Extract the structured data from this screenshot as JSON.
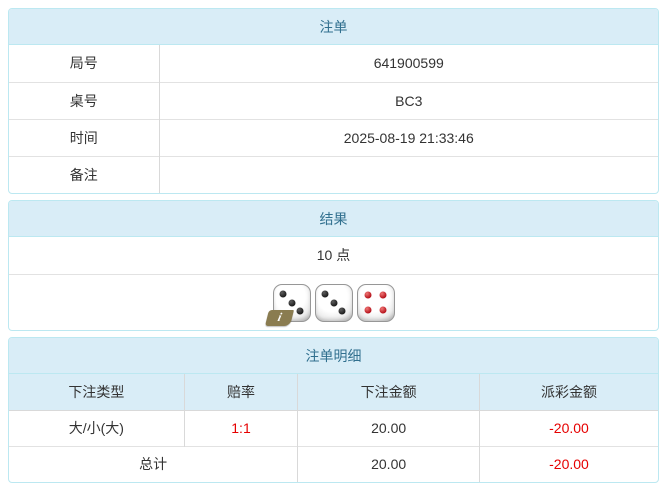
{
  "panels": {
    "order": {
      "title": "注单",
      "rows": [
        {
          "label": "局号",
          "value": "641900599"
        },
        {
          "label": "桌号",
          "value": "BC3"
        },
        {
          "label": "时间",
          "value": "2025-08-19 21:33:46"
        },
        {
          "label": "备注",
          "value": ""
        }
      ]
    },
    "result": {
      "title": "结果",
      "points": "10 点",
      "dice": [
        {
          "value": 3,
          "color": "black",
          "info_badge": true
        },
        {
          "value": 3,
          "color": "black",
          "info_badge": false
        },
        {
          "value": 4,
          "color": "red",
          "info_badge": false
        }
      ]
    },
    "details": {
      "title": "注单明细",
      "columns": [
        "下注类型",
        "赔率",
        "下注金额",
        "派彩金额"
      ],
      "rows": [
        {
          "bet_type": "大/小(大)",
          "odds": "1:1",
          "bet_amount": "20.00",
          "payout": "-20.00"
        }
      ],
      "total": {
        "label": "总计",
        "bet_amount": "20.00",
        "payout": "-20.00"
      }
    }
  },
  "icons": {
    "info_badge": "i"
  },
  "colors": {
    "header_bg": "#d9edf7",
    "header_text": "#31708f",
    "panel_border": "#bce8f1",
    "divider": "#d9d9d9",
    "body_text": "#333333",
    "negative_red": "#e60000",
    "pip_black": "#1c1c1c",
    "pip_red": "#b5121b",
    "badge_olive": "#8a7c50"
  }
}
